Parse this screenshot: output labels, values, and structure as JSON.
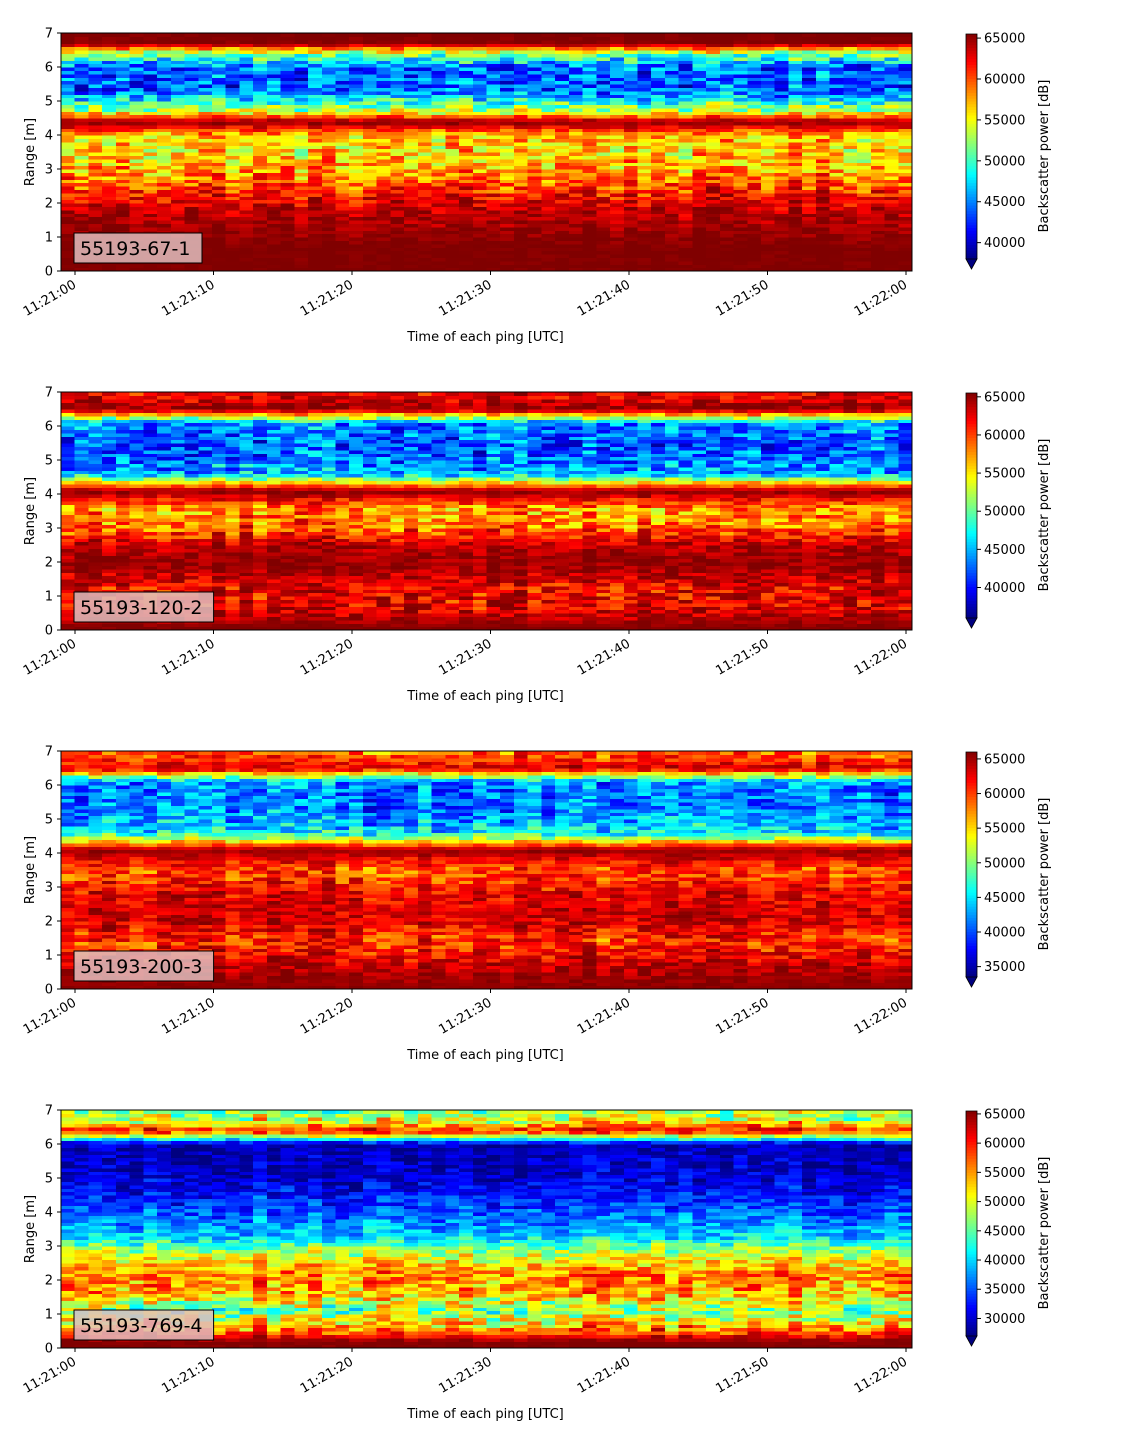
{
  "chart_data": [
    {
      "type": "heatmap",
      "label": "55193-67-1",
      "xlabel": "Time of each ping [UTC]",
      "ylabel": "Range [m]",
      "x_range": [
        "11:21:00",
        "11:22:00"
      ],
      "xticks": [
        "11:21:00",
        "11:21:10",
        "11:21:20",
        "11:21:30",
        "11:21:40",
        "11:21:50",
        "11:22:00"
      ],
      "ylim": [
        0,
        7
      ],
      "yticks": [
        "0",
        "1",
        "2",
        "3",
        "4",
        "5",
        "6",
        "7"
      ],
      "colorbar_label": "Backscatter power [dB]",
      "colormap": "jet",
      "clim": [
        38000,
        65500
      ],
      "colorbar_ticks": [
        "40000",
        "45000",
        "50000",
        "55000",
        "60000",
        "65000"
      ],
      "profile": [
        {
          "range": 0.2,
          "value": 65500,
          "spread": 500
        },
        {
          "range": 0.7,
          "value": 65500,
          "spread": 500
        },
        {
          "range": 1.8,
          "value": 64000,
          "spread": 2500
        },
        {
          "range": 2.3,
          "value": 61500,
          "spread": 4000
        },
        {
          "range": 2.9,
          "value": 58000,
          "spread": 5000
        },
        {
          "range": 3.5,
          "value": 56000,
          "spread": 5000
        },
        {
          "range": 4.0,
          "value": 57000,
          "spread": 4500
        },
        {
          "range": 4.4,
          "value": 65500,
          "spread": 800
        },
        {
          "range": 4.7,
          "value": 54000,
          "spread": 5000
        },
        {
          "range": 5.3,
          "value": 44000,
          "spread": 5000
        },
        {
          "range": 6.0,
          "value": 44000,
          "spread": 5000
        },
        {
          "range": 6.4,
          "value": 52000,
          "spread": 5000
        },
        {
          "range": 6.7,
          "value": 65500,
          "spread": 1000
        },
        {
          "range": 7.0,
          "value": 65500,
          "spread": 500
        }
      ]
    },
    {
      "type": "heatmap",
      "label": "55193-120-2",
      "xlabel": "Time of each ping [UTC]",
      "ylabel": "Range [m]",
      "x_range": [
        "11:21:00",
        "11:22:00"
      ],
      "xticks": [
        "11:21:00",
        "11:21:10",
        "11:21:20",
        "11:21:30",
        "11:21:40",
        "11:21:50",
        "11:22:00"
      ],
      "ylim": [
        0,
        7
      ],
      "yticks": [
        "0",
        "1",
        "2",
        "3",
        "4",
        "5",
        "6",
        "7"
      ],
      "colorbar_label": "Backscatter power [dB]",
      "colormap": "jet",
      "clim": [
        36000,
        65500
      ],
      "colorbar_ticks": [
        "40000",
        "45000",
        "50000",
        "55000",
        "60000",
        "65000"
      ],
      "profile": [
        {
          "range": 0.1,
          "value": 65500,
          "spread": 500
        },
        {
          "range": 0.6,
          "value": 63000,
          "spread": 4000
        },
        {
          "range": 1.2,
          "value": 62000,
          "spread": 4500
        },
        {
          "range": 1.9,
          "value": 65000,
          "spread": 1500
        },
        {
          "range": 2.5,
          "value": 64000,
          "spread": 2500
        },
        {
          "range": 3.0,
          "value": 59000,
          "spread": 5000
        },
        {
          "range": 3.6,
          "value": 57500,
          "spread": 5000
        },
        {
          "range": 4.1,
          "value": 65500,
          "spread": 800
        },
        {
          "range": 4.6,
          "value": 45000,
          "spread": 5000
        },
        {
          "range": 5.4,
          "value": 42000,
          "spread": 5000
        },
        {
          "range": 6.1,
          "value": 44000,
          "spread": 5000
        },
        {
          "range": 6.5,
          "value": 65000,
          "spread": 2000
        },
        {
          "range": 7.0,
          "value": 62000,
          "spread": 4000
        }
      ]
    },
    {
      "type": "heatmap",
      "label": "55193-200-3",
      "xlabel": "Time of each ping [UTC]",
      "ylabel": "Range [m]",
      "x_range": [
        "11:21:00",
        "11:22:00"
      ],
      "xticks": [
        "11:21:00",
        "11:21:10",
        "11:21:20",
        "11:21:30",
        "11:21:40",
        "11:21:50",
        "11:22:00"
      ],
      "ylim": [
        0,
        7
      ],
      "yticks": [
        "0",
        "1",
        "2",
        "3",
        "4",
        "5",
        "6",
        "7"
      ],
      "colorbar_label": "Backscatter power [dB]",
      "colormap": "jet",
      "clim": [
        33500,
        66000
      ],
      "colorbar_ticks": [
        "35000",
        "40000",
        "45000",
        "50000",
        "55000",
        "60000",
        "65000"
      ],
      "profile": [
        {
          "range": 0.1,
          "value": 65500,
          "spread": 500
        },
        {
          "range": 0.7,
          "value": 64000,
          "spread": 3000
        },
        {
          "range": 1.4,
          "value": 60000,
          "spread": 5000
        },
        {
          "range": 2.1,
          "value": 63500,
          "spread": 3000
        },
        {
          "range": 2.8,
          "value": 62500,
          "spread": 3500
        },
        {
          "range": 3.5,
          "value": 59000,
          "spread": 5000
        },
        {
          "range": 4.1,
          "value": 65500,
          "spread": 800
        },
        {
          "range": 4.6,
          "value": 45000,
          "spread": 5500
        },
        {
          "range": 5.4,
          "value": 41000,
          "spread": 5000
        },
        {
          "range": 6.1,
          "value": 42000,
          "spread": 5000
        },
        {
          "range": 6.5,
          "value": 63000,
          "spread": 3000
        },
        {
          "range": 7.0,
          "value": 58000,
          "spread": 5000
        }
      ]
    },
    {
      "type": "heatmap",
      "label": "55193-769-4",
      "xlabel": "Time of each ping [UTC]",
      "ylabel": "Range [m]",
      "x_range": [
        "11:21:00",
        "11:22:00"
      ],
      "xticks": [
        "11:21:00",
        "11:21:10",
        "11:21:20",
        "11:21:30",
        "11:21:40",
        "11:21:50",
        "11:22:00"
      ],
      "ylim": [
        0,
        7
      ],
      "yticks": [
        "0",
        "1",
        "2",
        "3",
        "4",
        "5",
        "6",
        "7"
      ],
      "colorbar_label": "Backscatter power [dB]",
      "colormap": "jet",
      "clim": [
        27000,
        65500
      ],
      "colorbar_ticks": [
        "30000",
        "35000",
        "40000",
        "45000",
        "50000",
        "55000",
        "60000",
        "65000"
      ],
      "profile": [
        {
          "range": 0.2,
          "value": 65500,
          "spread": 800
        },
        {
          "range": 0.6,
          "value": 55000,
          "spread": 8000
        },
        {
          "range": 1.1,
          "value": 46000,
          "spread": 8000
        },
        {
          "range": 1.6,
          "value": 54000,
          "spread": 7000
        },
        {
          "range": 2.2,
          "value": 56000,
          "spread": 6000
        },
        {
          "range": 2.8,
          "value": 49000,
          "spread": 6000
        },
        {
          "range": 3.3,
          "value": 40000,
          "spread": 5000
        },
        {
          "range": 4.0,
          "value": 35000,
          "spread": 5000
        },
        {
          "range": 5.0,
          "value": 30000,
          "spread": 4000
        },
        {
          "range": 6.0,
          "value": 29000,
          "spread": 3500
        },
        {
          "range": 6.4,
          "value": 61000,
          "spread": 5000
        },
        {
          "range": 6.7,
          "value": 50000,
          "spread": 8000
        },
        {
          "range": 7.0,
          "value": 47000,
          "spread": 7000
        }
      ]
    }
  ]
}
